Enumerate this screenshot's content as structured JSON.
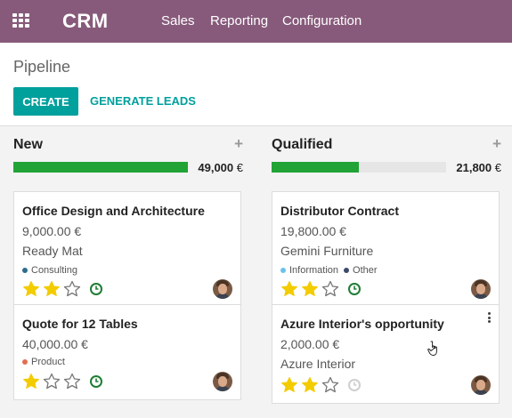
{
  "navbar": {
    "app_name": "CRM",
    "menu": [
      "Sales",
      "Reporting",
      "Configuration"
    ]
  },
  "control_panel": {
    "breadcrumb": "Pipeline",
    "create_label": "CREATE",
    "generate_label": "GENERATE LEADS"
  },
  "colors": {
    "navbar": "#875a7b",
    "accent": "#00a09d",
    "progress": "#21a336",
    "star_filled": "#f3cc00"
  },
  "columns": [
    {
      "title": "New",
      "plus": "+",
      "progress": 1.0,
      "total": "49,000",
      "currency": "€",
      "cards": [
        {
          "title": "Office Design and Architecture",
          "amount": "9,000.00 €",
          "partner": "Ready Mat",
          "tags": [
            {
              "label": "Consulting",
              "color": "#2e6c8e"
            }
          ],
          "stars": 2,
          "activity": "clock-icon-green"
        },
        {
          "title": "Quote for 12 Tables",
          "amount": "40,000.00 €",
          "partner": "",
          "tags": [
            {
              "label": "Product",
              "color": "#e06e52"
            }
          ],
          "stars": 1,
          "activity": "clock-icon-green"
        }
      ]
    },
    {
      "title": "Qualified",
      "plus": "+",
      "progress": 0.5,
      "total": "21,800",
      "currency": "€",
      "cards": [
        {
          "title": "Distributor Contract",
          "amount": "19,800.00 €",
          "partner": "Gemini Furniture",
          "tags": [
            {
              "label": "Information",
              "color": "#6cc1ed"
            },
            {
              "label": "Other",
              "color": "#3c4a6b"
            }
          ],
          "stars": 2,
          "activity": "clock-icon-green"
        },
        {
          "title": "Azure Interior's opportunity",
          "amount": "2,000.00 €",
          "partner": "Azure Interior",
          "tags": [],
          "stars": 2,
          "activity": "clock-icon-grey"
        }
      ]
    }
  ]
}
